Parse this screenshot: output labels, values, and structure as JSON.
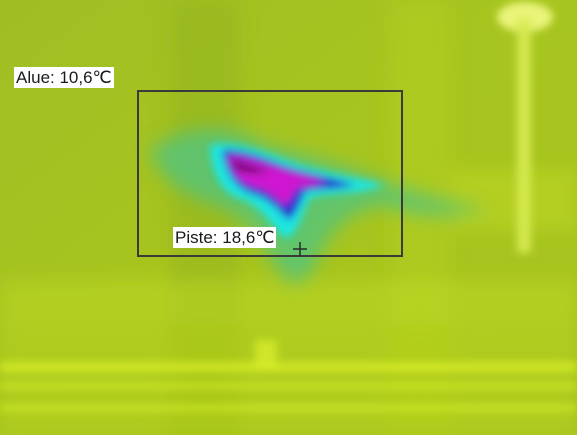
{
  "image": {
    "kind": "thermal-camera-image",
    "palette_colors": [
      "#a2c01f",
      "#b8d41a",
      "#d7f01b",
      "#52c8a0",
      "#1fe6e1",
      "#2836d0",
      "#d017d0"
    ]
  },
  "measurements": {
    "area_label": "Alue: 10,6℃",
    "spot_label": "Piste: 18,6℃"
  }
}
